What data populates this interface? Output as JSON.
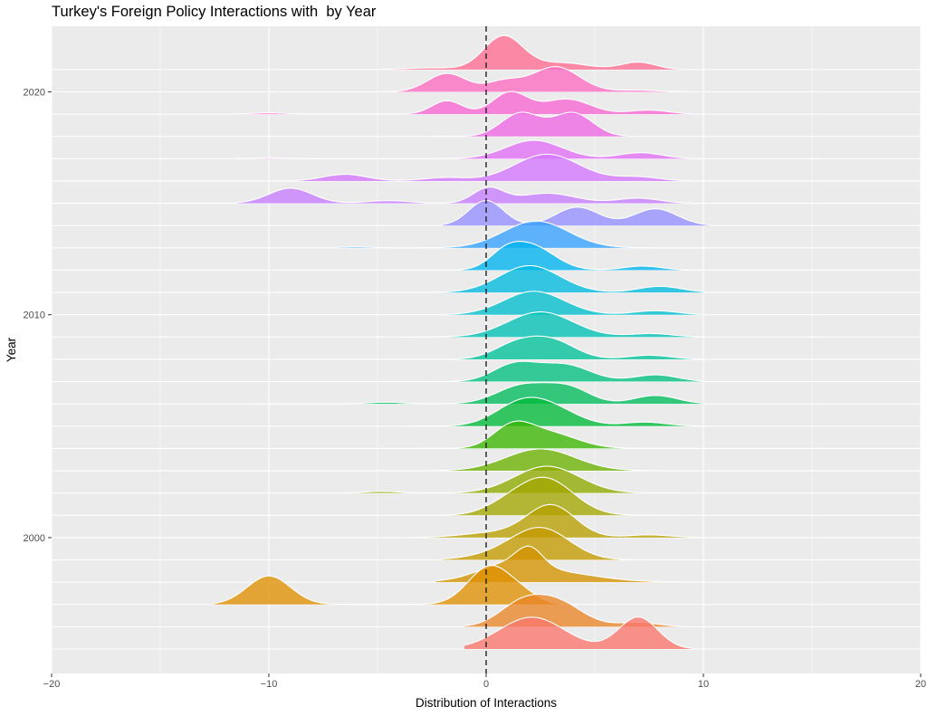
{
  "chart_data": {
    "type": "ridgeline",
    "title": "Turkey's Foreign Policy Interactions with  by Year",
    "xlabel": "Distribution of Interactions",
    "ylabel": "Year",
    "xlim": [
      -20,
      20
    ],
    "x_ticks": [
      -20,
      -10,
      0,
      10,
      20
    ],
    "x_tick_labels": [
      "−20",
      "−10",
      "0",
      "10",
      "20"
    ],
    "y_ticks": [
      2000,
      2010,
      2020
    ],
    "y_tick_labels": [
      "2000",
      "2010",
      "2020"
    ],
    "reference_line": {
      "x": 0,
      "style": "dashed"
    },
    "grid": true,
    "background": "#ebebeb",
    "series": [
      {
        "year": 1995,
        "color": "#F8766D",
        "range": [
          -1,
          9.5
        ],
        "peaks": [
          [
            2.1,
            0.95,
            1.5
          ],
          [
            7.0,
            0.95,
            0.9
          ]
        ]
      },
      {
        "year": 1996,
        "color": "#E88526",
        "range": [
          -1,
          9
        ],
        "peaks": [
          [
            1.5,
            0.55,
            1.0
          ],
          [
            3.2,
            0.75,
            1.2
          ],
          [
            7.0,
            0.13,
            0.9
          ]
        ]
      },
      {
        "year": 1997,
        "color": "#DF8F00",
        "range": [
          -12.5,
          4.2
        ],
        "peaks": [
          [
            -10.0,
            0.85,
            1.0
          ],
          [
            0.2,
            1.15,
            1.0
          ],
          [
            1.8,
            0.2,
            0.7
          ]
        ]
      },
      {
        "year": 1998,
        "color": "#D39200",
        "range": [
          -2.3,
          9.5
        ],
        "peaks": [
          [
            0.8,
            0.3,
            1.2
          ],
          [
            2.0,
            0.55,
            0.6
          ],
          [
            2.5,
            0.35,
            2.2
          ]
        ]
      },
      {
        "year": 1999,
        "color": "#C49A00",
        "range": [
          -2,
          9
        ],
        "peaks": [
          [
            2.6,
            0.85,
            1.3
          ],
          [
            1.0,
            0.2,
            1.5
          ]
        ]
      },
      {
        "year": 2000,
        "color": "#B79F00",
        "range": [
          -3.5,
          10
        ],
        "peaks": [
          [
            3.0,
            0.95,
            1.1
          ],
          [
            7.5,
            0.08,
            1.0
          ],
          [
            0.5,
            0.15,
            1.5
          ]
        ]
      },
      {
        "year": 2001,
        "color": "#A3A500",
        "range": [
          -2,
          9
        ],
        "peaks": [
          [
            2.7,
            1.1,
            1.3
          ],
          [
            0.8,
            0.2,
            1.0
          ]
        ]
      },
      {
        "year": 2002,
        "color": "#8EAB00",
        "range": [
          -6.5,
          9
        ],
        "peaks": [
          [
            2.8,
            0.8,
            1.5
          ],
          [
            -4.8,
            0.05,
            0.8
          ]
        ]
      },
      {
        "year": 2003,
        "color": "#6BB100",
        "range": [
          -2.5,
          8.5
        ],
        "peaks": [
          [
            2.5,
            0.65,
            1.6
          ]
        ]
      },
      {
        "year": 2004,
        "color": "#39B600",
        "range": [
          -3,
          10
        ],
        "peaks": [
          [
            1.2,
            0.6,
            0.9
          ],
          [
            2.9,
            0.45,
            1.3
          ]
        ]
      },
      {
        "year": 2005,
        "color": "#00BA38",
        "range": [
          -3.5,
          10
        ],
        "peaks": [
          [
            1.6,
            0.65,
            1.2
          ],
          [
            3.2,
            0.4,
            1.2
          ],
          [
            7.3,
            0.12,
            1.0
          ]
        ]
      },
      {
        "year": 2006,
        "color": "#00BD5C",
        "range": [
          -10.5,
          10
        ],
        "peaks": [
          [
            1.7,
            0.55,
            1.2
          ],
          [
            3.8,
            0.45,
            1.0
          ],
          [
            7.8,
            0.25,
            1.0
          ],
          [
            -4.6,
            0.05,
            0.8
          ]
        ]
      },
      {
        "year": 2007,
        "color": "#00BF7D",
        "range": [
          -3,
          10
        ],
        "peaks": [
          [
            1.3,
            0.5,
            1.0
          ],
          [
            3.6,
            0.5,
            1.2
          ],
          [
            7.8,
            0.2,
            1.0
          ]
        ]
      },
      {
        "year": 2008,
        "color": "#00C19A",
        "range": [
          -4,
          10
        ],
        "peaks": [
          [
            1.3,
            0.4,
            1.0
          ],
          [
            3.0,
            0.55,
            1.1
          ],
          [
            7.5,
            0.12,
            1.0
          ]
        ]
      },
      {
        "year": 2009,
        "color": "#00C0B5",
        "range": [
          -3.5,
          10
        ],
        "peaks": [
          [
            2.5,
            0.75,
            1.5
          ],
          [
            7.6,
            0.1,
            1.0
          ]
        ]
      },
      {
        "year": 2010,
        "color": "#00BECD",
        "range": [
          -2,
          10
        ],
        "peaks": [
          [
            2.2,
            0.7,
            1.4
          ],
          [
            7.8,
            0.12,
            1.0
          ]
        ]
      },
      {
        "year": 2011,
        "color": "#00BAE0",
        "range": [
          -3.5,
          10
        ],
        "peaks": [
          [
            2.0,
            0.8,
            1.4
          ],
          [
            8.0,
            0.18,
            1.0
          ]
        ]
      },
      {
        "year": 2012,
        "color": "#00B4EF",
        "range": [
          -5,
          9.5
        ],
        "peaks": [
          [
            0.8,
            0.3,
            0.7
          ],
          [
            2.0,
            0.75,
            1.1
          ],
          [
            7.2,
            0.12,
            0.9
          ]
        ]
      },
      {
        "year": 2013,
        "color": "#35A2FF",
        "range": [
          -7,
          10.3
        ],
        "peaks": [
          [
            2.3,
            0.8,
            1.5
          ],
          [
            -6,
            0.03,
            0.7
          ]
        ]
      },
      {
        "year": 2014,
        "color": "#9590FF",
        "range": [
          -2,
          10.3
        ],
        "peaks": [
          [
            0.0,
            0.75,
            0.8
          ],
          [
            4.2,
            0.55,
            1.0
          ],
          [
            7.8,
            0.5,
            1.0
          ]
        ]
      },
      {
        "year": 2015,
        "color": "#C77CFF",
        "range": [
          -11.5,
          9.5
        ],
        "peaks": [
          [
            -9.0,
            0.45,
            1.0
          ],
          [
            -4.5,
            0.08,
            1.0
          ],
          [
            0.1,
            0.45,
            0.7
          ],
          [
            2.8,
            0.3,
            1.3
          ],
          [
            7.0,
            0.15,
            1.0
          ]
        ]
      },
      {
        "year": 2016,
        "color": "#D376FF",
        "range": [
          -10,
          9.5
        ],
        "peaks": [
          [
            -6.5,
            0.2,
            1.0
          ],
          [
            -1.9,
            0.1,
            1.0
          ],
          [
            2.8,
            0.8,
            1.5
          ],
          [
            7.0,
            0.12,
            1.0
          ]
        ]
      },
      {
        "year": 2017,
        "color": "#E26EF7",
        "range": [
          -11.5,
          10
        ],
        "peaks": [
          [
            2.2,
            0.55,
            1.3
          ],
          [
            7.1,
            0.18,
            1.0
          ],
          [
            -10.0,
            0.02,
            0.8
          ]
        ]
      },
      {
        "year": 2018,
        "color": "#EE67E3",
        "range": [
          -2.5,
          6.5
        ],
        "peaks": [
          [
            1.6,
            0.7,
            0.9
          ],
          [
            4.0,
            0.7,
            0.9
          ]
        ]
      },
      {
        "year": 2019,
        "color": "#F766D4",
        "range": [
          -11.5,
          9.5
        ],
        "peaks": [
          [
            -10.0,
            0.04,
            0.8
          ],
          [
            -1.8,
            0.4,
            0.7
          ],
          [
            1.1,
            0.65,
            0.8
          ],
          [
            3.7,
            0.45,
            1.1
          ],
          [
            7.5,
            0.12,
            0.9
          ]
        ]
      },
      {
        "year": 2020,
        "color": "#FC6BC1",
        "range": [
          -5,
          9.5
        ],
        "peaks": [
          [
            -1.8,
            0.55,
            0.9
          ],
          [
            0.8,
            0.3,
            0.8
          ],
          [
            3.2,
            0.75,
            1.1
          ],
          [
            7.0,
            0.05,
            1.0
          ]
        ]
      },
      {
        "year": 2021,
        "color": "#FF6C91",
        "range": [
          -5,
          9
        ],
        "peaks": [
          [
            -2.5,
            0.05,
            1.2
          ],
          [
            0.8,
            1.0,
            0.9
          ],
          [
            3.5,
            0.2,
            1.2
          ],
          [
            7.0,
            0.22,
            0.8
          ]
        ]
      }
    ]
  }
}
